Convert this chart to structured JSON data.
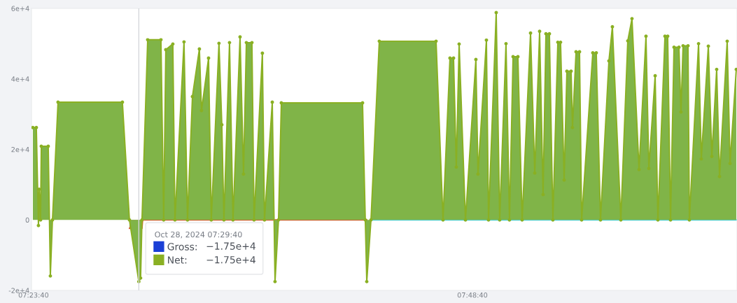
{
  "chart_data": {
    "type": "area",
    "xlim": [
      7.3925,
      8.0623
    ],
    "xticks": [
      {
        "value": 7.39444,
        "label": "07:23:40"
      },
      {
        "value": 7.81111,
        "label": "07:48:40"
      }
    ],
    "ylim": [
      -20000,
      60000
    ],
    "yticks": [
      {
        "value": -20000,
        "label": "-2e+4"
      },
      0,
      {
        "value": 20000,
        "label": "2e+4"
      },
      {
        "value": 40000,
        "label": "4e+4"
      },
      {
        "value": 60000,
        "label": "6e+4"
      }
    ],
    "grid": false,
    "marker": "circle",
    "series": [
      {
        "name": "Gross:",
        "color": "#1a3fd6"
      },
      {
        "name": "Net:",
        "color": "#8ab023",
        "x": [
          7.3938,
          7.3971,
          7.3991,
          7.3998,
          7.4011,
          7.4018,
          7.4084,
          7.4104,
          7.4124,
          7.4177,
          7.4788,
          7.4855,
          7.4944,
          7.4961,
          7.4974,
          7.5028,
          7.5154,
          7.518,
          7.52,
          7.5267,
          7.5287,
          7.5373,
          7.5406,
          7.5453,
          7.5519,
          7.5539,
          7.5606,
          7.5632,
          7.5705,
          7.5732,
          7.5752,
          7.5805,
          7.5838,
          7.5905,
          7.5938,
          7.5965,
          7.6018,
          7.6038,
          7.6117,
          7.6137,
          7.6211,
          7.6237,
          7.627,
          7.6297,
          7.7068,
          7.7094,
          7.7108,
          7.7148,
          7.7227,
          7.7766,
          7.7832,
          7.7898,
          7.7932,
          7.7958,
          7.7985,
          7.8045,
          7.8144,
          7.8164,
          7.8244,
          7.8264,
          7.8337,
          7.837,
          7.843,
          7.8463,
          7.8497,
          7.8543,
          7.8583,
          7.8663,
          7.8703,
          7.8749,
          7.8782,
          7.8809,
          7.8842,
          7.8875,
          7.8922,
          7.8948,
          7.8982,
          7.9008,
          7.9048,
          7.9061,
          7.9095,
          7.9128,
          7.9148,
          7.9254,
          7.9287,
          7.9327,
          7.9407,
          7.944,
          7.952,
          7.9586,
          7.9626,
          7.9693,
          7.9759,
          7.9786,
          7.9846,
          7.9872,
          7.9939,
          7.9965,
          7.9992,
          8.0025,
          8.0072,
          8.0091,
          8.0111,
          8.0158,
          8.0171,
          8.0258,
          8.0284,
          8.0351,
          8.0384,
          8.043,
          8.0457,
          8.053,
          8.0557,
          8.0616
        ],
        "values": [
          26200,
          26200,
          -1600,
          8700,
          0,
          20900,
          20900,
          -15900,
          0,
          33400,
          33400,
          0,
          -17500,
          -16500,
          0,
          51100,
          51100,
          0,
          48300,
          49900,
          0,
          50500,
          0,
          35000,
          48500,
          31000,
          45900,
          0,
          50100,
          27000,
          0,
          50300,
          0,
          51900,
          13000,
          50300,
          50300,
          0,
          47300,
          0,
          33400,
          -17500,
          0,
          33200,
          33200,
          0,
          -17500,
          0,
          50700,
          50700,
          0,
          45900,
          45900,
          15000,
          49900,
          0,
          45500,
          13000,
          51000,
          0,
          58800,
          0,
          50000,
          0,
          46300,
          46300,
          0,
          53000,
          13300,
          53500,
          7200,
          52800,
          52800,
          0,
          50400,
          50400,
          11300,
          42200,
          42200,
          26200,
          47700,
          47700,
          0,
          47400,
          47400,
          0,
          45100,
          54800,
          0,
          50800,
          57100,
          14300,
          52100,
          14600,
          40900,
          0,
          52100,
          52100,
          0,
          49000,
          49000,
          30600,
          49400,
          49400,
          0,
          50000,
          17300,
          49300,
          18000,
          42700,
          12300,
          50700,
          16000,
          42700
        ]
      },
      {
        "color": "#d9552b",
        "marker": "none",
        "x": [
          7.4855,
          7.4974,
          7.498,
          7.7108
        ],
        "values": [
          -2400,
          -2400,
          0,
          0
        ]
      },
      {
        "type": "line",
        "color": "#45d3e3",
        "marker": "none",
        "x": [
          7.7148,
          8.0623
        ],
        "values": [
          0,
          0
        ]
      }
    ],
    "ref_lines": [
      {
        "axis": "x",
        "value": 7.4944,
        "color": "#d5d7db"
      }
    ],
    "legend": "bottom left",
    "legend_title": "Oct 28, 2024 07:29:40",
    "annotations": [
      "−1.75e+4",
      "−1.75e+4"
    ]
  }
}
